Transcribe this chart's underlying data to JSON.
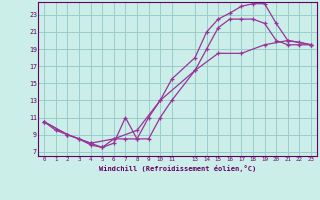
{
  "xlabel": "Windchill (Refroidissement éolien,°C)",
  "bg_color": "#cceee8",
  "line_color": "#993399",
  "grid_color": "#99cccc",
  "axis_color": "#660066",
  "xmin": -0.5,
  "xmax": 23.5,
  "ymin": 6.5,
  "ymax": 24.5,
  "yticks": [
    7,
    9,
    11,
    13,
    15,
    17,
    19,
    21,
    23
  ],
  "xticks": [
    0,
    1,
    2,
    3,
    4,
    5,
    6,
    7,
    8,
    9,
    10,
    11,
    13,
    14,
    15,
    16,
    17,
    18,
    19,
    20,
    21,
    22,
    23
  ],
  "line1_x": [
    0,
    1,
    2,
    3,
    4,
    5,
    6,
    7,
    8,
    9,
    10,
    11,
    13,
    14,
    15,
    16,
    17,
    18,
    19,
    20,
    21,
    22,
    23
  ],
  "line1_y": [
    10.5,
    9.5,
    9.0,
    8.5,
    7.8,
    7.5,
    8.5,
    8.5,
    8.5,
    11.0,
    13.0,
    15.5,
    18.0,
    21.0,
    22.5,
    23.2,
    24.0,
    24.3,
    24.3,
    22.0,
    20.0,
    19.8,
    19.5
  ],
  "line2_x": [
    0,
    2,
    3,
    4,
    5,
    6,
    7,
    8,
    9,
    10,
    11,
    13,
    14,
    15,
    16,
    17,
    18,
    19,
    20,
    21,
    22,
    23
  ],
  "line2_y": [
    10.5,
    9.0,
    8.5,
    8.0,
    7.5,
    8.0,
    11.0,
    8.5,
    8.5,
    11.0,
    13.0,
    16.5,
    19.0,
    21.5,
    22.5,
    22.5,
    22.5,
    22.0,
    20.0,
    19.5,
    19.5,
    19.5
  ],
  "line3_x": [
    0,
    2,
    4,
    6,
    8,
    10,
    13,
    15,
    17,
    19,
    21,
    23
  ],
  "line3_y": [
    10.5,
    9.0,
    8.0,
    8.5,
    9.5,
    13.0,
    16.5,
    18.5,
    18.5,
    19.5,
    20.0,
    19.5
  ]
}
